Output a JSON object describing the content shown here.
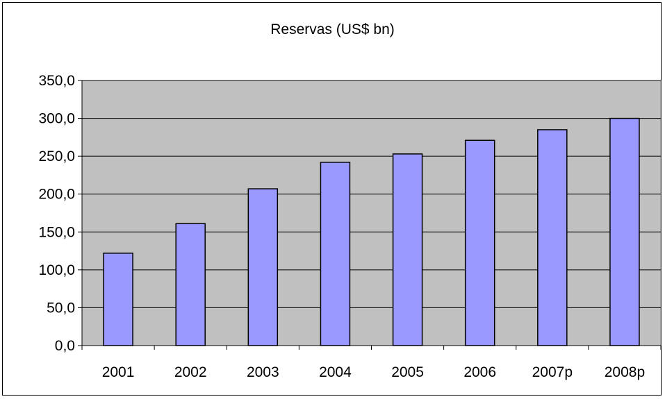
{
  "chart_data": {
    "type": "bar",
    "title": "Reservas (US$ bn)",
    "xlabel": "",
    "ylabel": "",
    "categories": [
      "2001",
      "2002",
      "2003",
      "2004",
      "2005",
      "2006",
      "2007p",
      "2008p"
    ],
    "series": [
      {
        "values": [
          122.0,
          161.0,
          207.0,
          242.0,
          253.0,
          271.0,
          285.0,
          300.0
        ]
      }
    ],
    "ylim": [
      0,
      350
    ],
    "yticks": [
      "0,0",
      "50,0",
      "100,0",
      "150,0",
      "200,0",
      "250,0",
      "300,0",
      "350,0"
    ],
    "grid": true,
    "legend": "none",
    "colors": {
      "bar": "#9999ff",
      "plot_bg": "#c0c0c0",
      "grid": "#000000"
    }
  }
}
